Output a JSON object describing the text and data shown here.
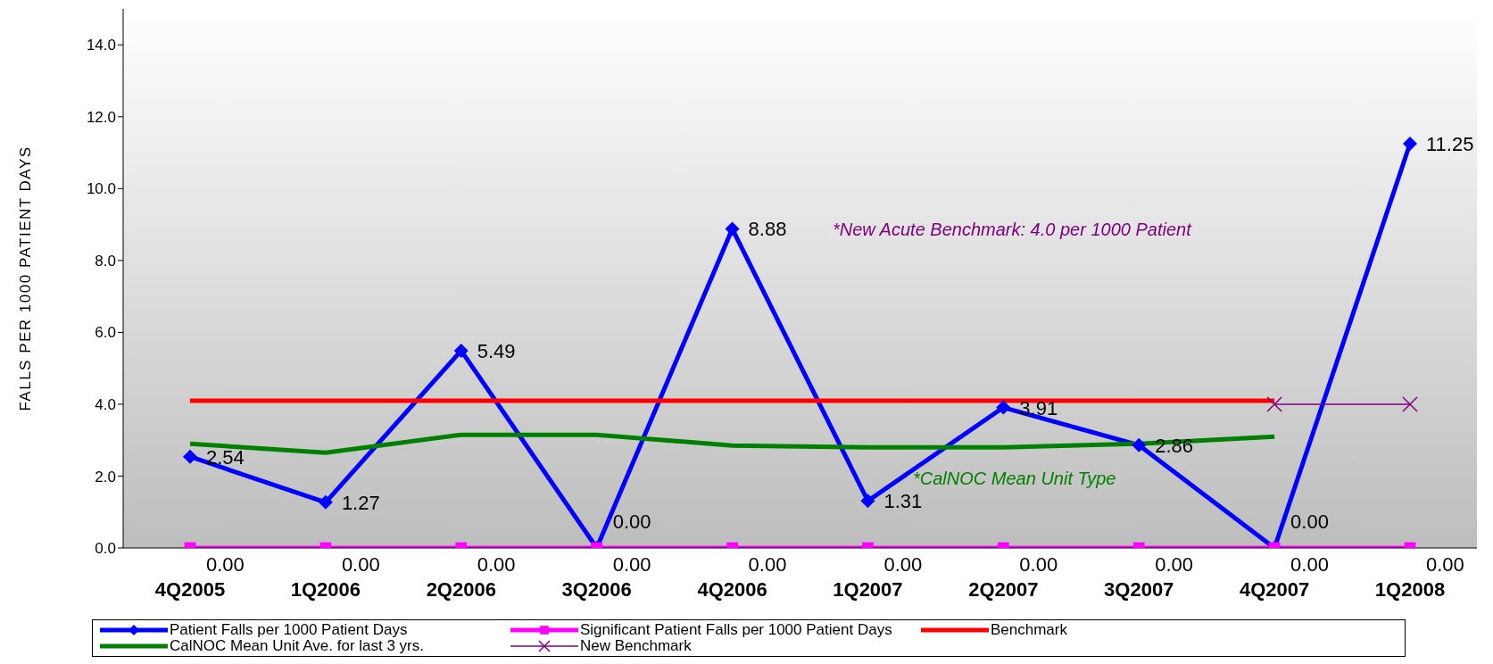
{
  "chart_data": {
    "type": "line",
    "ylabel": "FALLS PER 1000 PATIENT DAYS",
    "categories": [
      "4Q2005",
      "1Q2006",
      "2Q2006",
      "3Q2006",
      "4Q2006",
      "1Q2007",
      "2Q2007",
      "3Q2007",
      "4Q2007",
      "1Q2008"
    ],
    "series": [
      {
        "name": "Patient Falls per 1000 Patient Days",
        "color": "#0000ff",
        "marker": "diamond",
        "values": [
          2.54,
          1.27,
          5.49,
          0.0,
          8.88,
          1.31,
          3.91,
          2.86,
          0.0,
          11.25
        ],
        "value_labels": [
          "2.54",
          "1.27",
          "5.49",
          "0.00",
          "8.88",
          "1.31",
          "3.91",
          "2.86",
          "0.00",
          "11.25"
        ]
      },
      {
        "name": "Significant Patient Falls per 1000 Patient Days",
        "color": "#ff00ff",
        "marker": "square",
        "values": [
          0,
          0,
          0,
          0,
          0,
          0,
          0,
          0,
          0,
          0
        ],
        "value_labels": [
          "0.00",
          "0.00",
          "0.00",
          "0.00",
          "0.00",
          "0.00",
          "0.00",
          "0.00",
          "0.00",
          "0.00"
        ]
      },
      {
        "name": "Benchmark",
        "color": "#ff0000",
        "marker": "none",
        "values": [
          4.1,
          4.1,
          4.1,
          4.1,
          4.1,
          4.1,
          4.1,
          4.1,
          4.1,
          null
        ]
      },
      {
        "name": "CalNOC Mean Unit Ave. for last 3 yrs.",
        "color": "#008000",
        "marker": "none",
        "values": [
          2.9,
          2.65,
          3.15,
          3.15,
          2.85,
          2.8,
          2.8,
          2.9,
          3.1,
          null
        ]
      },
      {
        "name": "New Benchmark",
        "color": "#800080",
        "marker": "cross",
        "values": [
          null,
          null,
          null,
          null,
          null,
          null,
          null,
          null,
          4.0,
          4.0
        ]
      }
    ],
    "ylim": [
      0,
      15
    ],
    "yticks": [
      {
        "value": 0,
        "label": "0.0"
      },
      {
        "value": 2,
        "label": "2.0"
      },
      {
        "value": 4,
        "label": "4.0"
      },
      {
        "value": 6,
        "label": "6.0"
      },
      {
        "value": 8,
        "label": "8.0"
      },
      {
        "value": 10,
        "label": "10.0"
      },
      {
        "value": 12,
        "label": "12.0"
      },
      {
        "value": 14,
        "label": "14.0"
      }
    ],
    "legend": "bottom",
    "annotations": [
      "*New Acute Benchmark:  4.0 per 1000 Patient",
      "*CalNOC Mean Unit Type"
    ]
  }
}
